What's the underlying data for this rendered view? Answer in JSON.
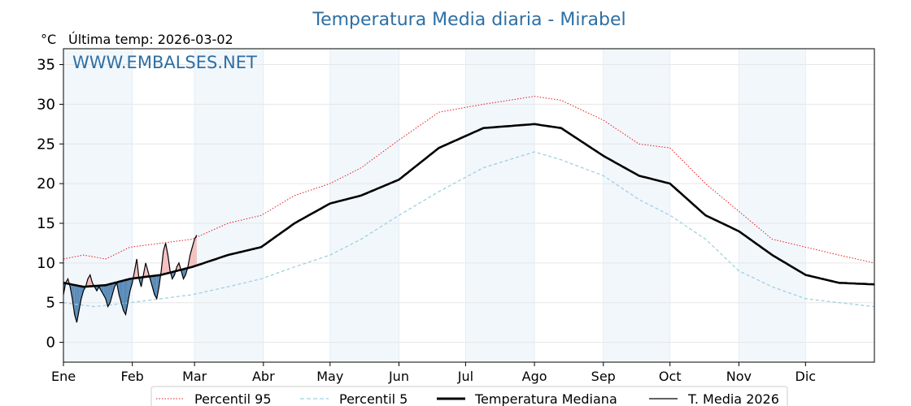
{
  "chart_data": {
    "type": "line",
    "title": "Temperatura Media diaria - Mirabel",
    "unit_label": "°C",
    "last_temp_label": "Última temp: 2026-03-02",
    "watermark": "WWW.EMBALSES.NET",
    "xlabel": "",
    "ylabel": "",
    "ylim": [
      -2.5,
      37
    ],
    "xlim": [
      1,
      366
    ],
    "yticks": [
      0,
      5,
      10,
      15,
      20,
      25,
      30,
      35
    ],
    "month_labels": [
      "Ene",
      "Feb",
      "Mar",
      "Abr",
      "May",
      "Jun",
      "Jul",
      "Ago",
      "Sep",
      "Oct",
      "Nov",
      "Dic"
    ],
    "month_start_days": [
      1,
      32,
      60,
      91,
      121,
      152,
      182,
      213,
      244,
      274,
      305,
      335
    ],
    "shaded_months": [
      "Ene",
      "Mar",
      "May",
      "Jul",
      "Sep",
      "Nov"
    ],
    "grid": true,
    "legend_position": "bottom-center",
    "series": [
      {
        "name": "Percentil 95",
        "color": "#e41a1c",
        "style": "dotted",
        "knots": [
          [
            1,
            10.5
          ],
          [
            10,
            11
          ],
          [
            20,
            10.5
          ],
          [
            31,
            12
          ],
          [
            45,
            12.5
          ],
          [
            59,
            13
          ],
          [
            75,
            15
          ],
          [
            90,
            16
          ],
          [
            105,
            18.5
          ],
          [
            121,
            20
          ],
          [
            135,
            22
          ],
          [
            152,
            25.5
          ],
          [
            170,
            29
          ],
          [
            190,
            30
          ],
          [
            213,
            31
          ],
          [
            225,
            30.5
          ],
          [
            244,
            28
          ],
          [
            260,
            25
          ],
          [
            274,
            24.5
          ],
          [
            290,
            20
          ],
          [
            305,
            16.5
          ],
          [
            320,
            13
          ],
          [
            335,
            12
          ],
          [
            350,
            11
          ],
          [
            366,
            10
          ]
        ]
      },
      {
        "name": "Percentil 5",
        "color": "#9fd0e0",
        "style": "dashed",
        "knots": [
          [
            1,
            5
          ],
          [
            15,
            4.5
          ],
          [
            31,
            5
          ],
          [
            45,
            5.5
          ],
          [
            59,
            6
          ],
          [
            75,
            7
          ],
          [
            90,
            8
          ],
          [
            105,
            9.5
          ],
          [
            121,
            11
          ],
          [
            135,
            13
          ],
          [
            152,
            16
          ],
          [
            170,
            19
          ],
          [
            190,
            22
          ],
          [
            213,
            24
          ],
          [
            225,
            23
          ],
          [
            244,
            21
          ],
          [
            260,
            18
          ],
          [
            274,
            16
          ],
          [
            290,
            13
          ],
          [
            305,
            9
          ],
          [
            320,
            7
          ],
          [
            335,
            5.5
          ],
          [
            350,
            5
          ],
          [
            366,
            4.5
          ]
        ]
      },
      {
        "name": "Temperatura Mediana",
        "color": "#000000",
        "style": "thick",
        "knots": [
          [
            1,
            7.5
          ],
          [
            10,
            7
          ],
          [
            20,
            7.2
          ],
          [
            31,
            8
          ],
          [
            45,
            8.5
          ],
          [
            59,
            9.5
          ],
          [
            75,
            11
          ],
          [
            90,
            12
          ],
          [
            105,
            15
          ],
          [
            121,
            17.5
          ],
          [
            135,
            18.5
          ],
          [
            152,
            20.5
          ],
          [
            170,
            24.5
          ],
          [
            190,
            27
          ],
          [
            213,
            27.5
          ],
          [
            225,
            27
          ],
          [
            244,
            23.5
          ],
          [
            260,
            21
          ],
          [
            274,
            20
          ],
          [
            290,
            16
          ],
          [
            305,
            14
          ],
          [
            320,
            11
          ],
          [
            335,
            8.5
          ],
          [
            350,
            7.5
          ],
          [
            366,
            7.3
          ]
        ]
      },
      {
        "name": "T. Media 2026",
        "color": "#000000",
        "style": "thin",
        "points": [
          [
            1,
            6
          ],
          [
            2,
            7.5
          ],
          [
            3,
            8
          ],
          [
            4,
            7
          ],
          [
            5,
            5.5
          ],
          [
            6,
            3.5
          ],
          [
            7,
            2.5
          ],
          [
            8,
            4
          ],
          [
            9,
            5.5
          ],
          [
            10,
            6.5
          ],
          [
            11,
            7
          ],
          [
            12,
            8
          ],
          [
            13,
            8.5
          ],
          [
            14,
            7.5
          ],
          [
            15,
            7
          ],
          [
            16,
            6.5
          ],
          [
            17,
            7
          ],
          [
            18,
            6.5
          ],
          [
            19,
            6
          ],
          [
            20,
            5.5
          ],
          [
            21,
            4.5
          ],
          [
            22,
            5
          ],
          [
            23,
            6
          ],
          [
            24,
            7
          ],
          [
            25,
            7.5
          ],
          [
            26,
            6
          ],
          [
            27,
            5
          ],
          [
            28,
            4
          ],
          [
            29,
            3.5
          ],
          [
            30,
            5
          ],
          [
            31,
            6.5
          ],
          [
            32,
            7.5
          ],
          [
            33,
            9
          ],
          [
            34,
            10.5
          ],
          [
            35,
            8
          ],
          [
            36,
            7
          ],
          [
            37,
            8.5
          ],
          [
            38,
            10
          ],
          [
            39,
            9
          ],
          [
            40,
            8
          ],
          [
            41,
            7
          ],
          [
            42,
            6
          ],
          [
            43,
            5.5
          ],
          [
            44,
            7
          ],
          [
            45,
            9
          ],
          [
            46,
            11.5
          ],
          [
            47,
            12.5
          ],
          [
            48,
            11
          ],
          [
            49,
            9
          ],
          [
            50,
            8
          ],
          [
            51,
            8.5
          ],
          [
            52,
            9.5
          ],
          [
            53,
            10
          ],
          [
            54,
            9
          ],
          [
            55,
            8
          ],
          [
            56,
            8.5
          ],
          [
            57,
            9.5
          ],
          [
            58,
            11
          ],
          [
            59,
            12
          ],
          [
            60,
            13
          ],
          [
            61,
            13.5
          ]
        ]
      }
    ],
    "annotation_bands": [
      {
        "name": "above-median",
        "color": "#f4b9b9",
        "meaning": "T. Media 2026 above Temperatura Mediana"
      },
      {
        "name": "below-median",
        "color": "#4a7fb0",
        "meaning": "T. Media 2026 below Temperatura Mediana"
      }
    ]
  }
}
